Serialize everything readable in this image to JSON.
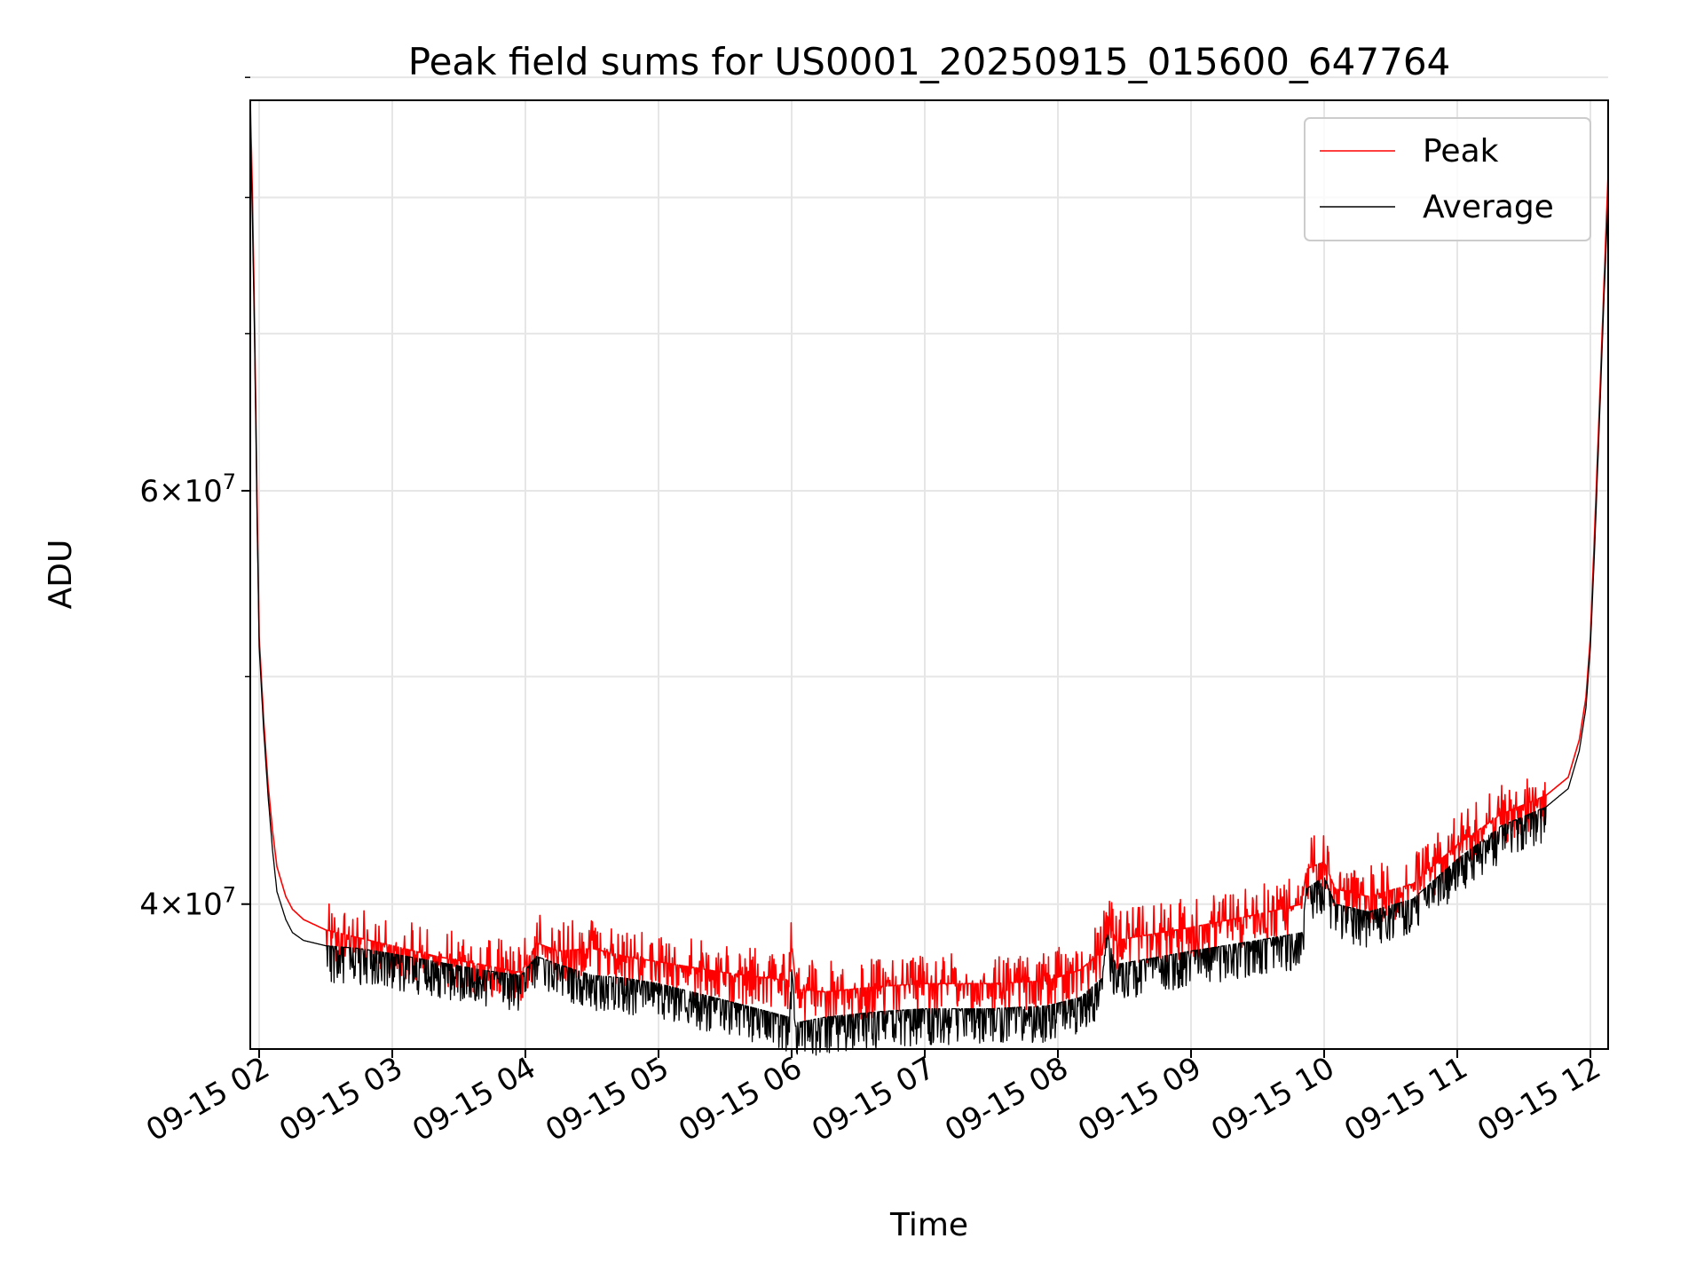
{
  "chart_data": {
    "type": "line",
    "title": "Peak field sums for US0001_20250915_015600_647764",
    "xlabel": "Time",
    "ylabel": "ADU",
    "x_ticks": [
      "09-15 02",
      "09-15 03",
      "09-15 04",
      "09-15 05",
      "09-15 06",
      "09-15 07",
      "09-15 08",
      "09-15 09",
      "09-15 10",
      "09-15 11",
      "09-15 12"
    ],
    "y_scale": "log",
    "y_ticks": [
      {
        "value": 40000000,
        "mantissa": "4",
        "exponent": "7"
      },
      {
        "value": 60000000,
        "mantissa": "6",
        "exponent": "7"
      }
    ],
    "y_minor_ticks": [
      50000000,
      70000000,
      80000000,
      90000000
    ],
    "xlim": [
      "2025-09-15 01:56",
      "2025-09-15 12:08"
    ],
    "ylim": [
      34700000,
      88000000
    ],
    "grid": true,
    "legend_position": "top-right",
    "colors": {
      "peak": "#ff0000",
      "average": "#000000"
    },
    "series": [
      {
        "name": "Peak",
        "color": "#ff0000",
        "x": [
          "2025-09-15 01:56",
          "2025-09-15 01:57",
          "2025-09-15 01:58",
          "2025-09-15 01:59",
          "2025-09-15 02:00",
          "2025-09-15 02:02",
          "2025-09-15 02:04",
          "2025-09-15 02:06",
          "2025-09-15 02:08",
          "2025-09-15 02:12",
          "2025-09-15 02:15",
          "2025-09-15 02:20",
          "2025-09-15 02:30",
          "2025-09-15 02:45",
          "2025-09-15 03:00",
          "2025-09-15 03:20",
          "2025-09-15 03:40",
          "2025-09-15 03:58",
          "2025-09-15 04:05",
          "2025-09-15 04:15",
          "2025-09-15 04:30",
          "2025-09-15 04:45",
          "2025-09-15 05:00",
          "2025-09-15 05:30",
          "2025-09-15 05:59",
          "2025-09-15 06:00",
          "2025-09-15 06:02",
          "2025-09-15 06:15",
          "2025-09-15 06:40",
          "2025-09-15 07:00",
          "2025-09-15 07:30",
          "2025-09-15 07:55",
          "2025-09-15 08:10",
          "2025-09-15 08:20",
          "2025-09-15 08:22",
          "2025-09-15 08:26",
          "2025-09-15 08:40",
          "2025-09-15 09:00",
          "2025-09-15 09:30",
          "2025-09-15 09:50",
          "2025-09-15 09:52",
          "2025-09-15 10:00",
          "2025-09-15 10:05",
          "2025-09-15 10:20",
          "2025-09-15 10:40",
          "2025-09-15 11:00",
          "2025-09-15 11:20",
          "2025-09-15 11:40",
          "2025-09-15 11:50",
          "2025-09-15 11:55",
          "2025-09-15 11:58",
          "2025-09-15 12:00",
          "2025-09-15 12:02",
          "2025-09-15 12:04",
          "2025-09-15 12:06",
          "2025-09-15 12:08"
        ],
        "values": [
          88000000,
          80000000,
          70000000,
          60000000,
          52000000,
          48000000,
          45000000,
          43000000,
          41500000,
          40300000,
          39800000,
          39400000,
          39000000,
          38700000,
          38400000,
          38000000,
          37700000,
          37400000,
          38500000,
          38200000,
          38300000,
          38000000,
          37800000,
          37400000,
          37100000,
          38500000,
          36800000,
          36700000,
          36900000,
          37000000,
          37000000,
          37100000,
          37500000,
          38200000,
          39600000,
          38600000,
          38800000,
          39100000,
          39600000,
          40000000,
          41400000,
          41700000,
          40600000,
          40300000,
          40800000,
          42400000,
          43700000,
          44500000,
          45300000,
          47000000,
          49000000,
          52000000,
          58000000,
          65000000,
          73000000,
          82000000
        ]
      },
      {
        "name": "Average",
        "color": "#000000",
        "x": [
          "2025-09-15 01:56",
          "2025-09-15 01:57",
          "2025-09-15 01:58",
          "2025-09-15 01:59",
          "2025-09-15 02:00",
          "2025-09-15 02:02",
          "2025-09-15 02:04",
          "2025-09-15 02:06",
          "2025-09-15 02:08",
          "2025-09-15 02:12",
          "2025-09-15 02:15",
          "2025-09-15 02:20",
          "2025-09-15 02:30",
          "2025-09-15 02:45",
          "2025-09-15 03:00",
          "2025-09-15 03:20",
          "2025-09-15 03:40",
          "2025-09-15 03:58",
          "2025-09-15 04:05",
          "2025-09-15 04:15",
          "2025-09-15 04:30",
          "2025-09-15 04:45",
          "2025-09-15 05:00",
          "2025-09-15 05:30",
          "2025-09-15 05:59",
          "2025-09-15 06:00",
          "2025-09-15 06:02",
          "2025-09-15 06:15",
          "2025-09-15 06:40",
          "2025-09-15 07:00",
          "2025-09-15 07:30",
          "2025-09-15 07:55",
          "2025-09-15 08:10",
          "2025-09-15 08:20",
          "2025-09-15 08:22",
          "2025-09-15 08:26",
          "2025-09-15 08:40",
          "2025-09-15 09:00",
          "2025-09-15 09:30",
          "2025-09-15 09:50",
          "2025-09-15 09:52",
          "2025-09-15 10:00",
          "2025-09-15 10:05",
          "2025-09-15 10:20",
          "2025-09-15 10:40",
          "2025-09-15 11:00",
          "2025-09-15 11:20",
          "2025-09-15 11:40",
          "2025-09-15 11:50",
          "2025-09-15 11:55",
          "2025-09-15 11:58",
          "2025-09-15 12:00",
          "2025-09-15 12:02",
          "2025-09-15 12:04",
          "2025-09-15 12:06",
          "2025-09-15 12:08"
        ],
        "values": [
          86000000,
          78000000,
          69000000,
          59000000,
          51500000,
          47500000,
          44500000,
          42200000,
          40500000,
          39400000,
          38900000,
          38600000,
          38400000,
          38300000,
          38100000,
          37800000,
          37500000,
          37300000,
          38000000,
          37700000,
          37300000,
          37200000,
          37000000,
          36400000,
          35800000,
          37600000,
          35600000,
          35800000,
          36000000,
          36100000,
          36100000,
          36200000,
          36500000,
          37200000,
          38900000,
          37700000,
          37900000,
          38200000,
          38600000,
          38900000,
          40600000,
          41100000,
          40000000,
          39700000,
          40200000,
          41800000,
          43200000,
          44000000,
          44800000,
          46500000,
          48500000,
          51500000,
          57000000,
          64000000,
          72000000,
          80000000
        ]
      }
    ]
  }
}
